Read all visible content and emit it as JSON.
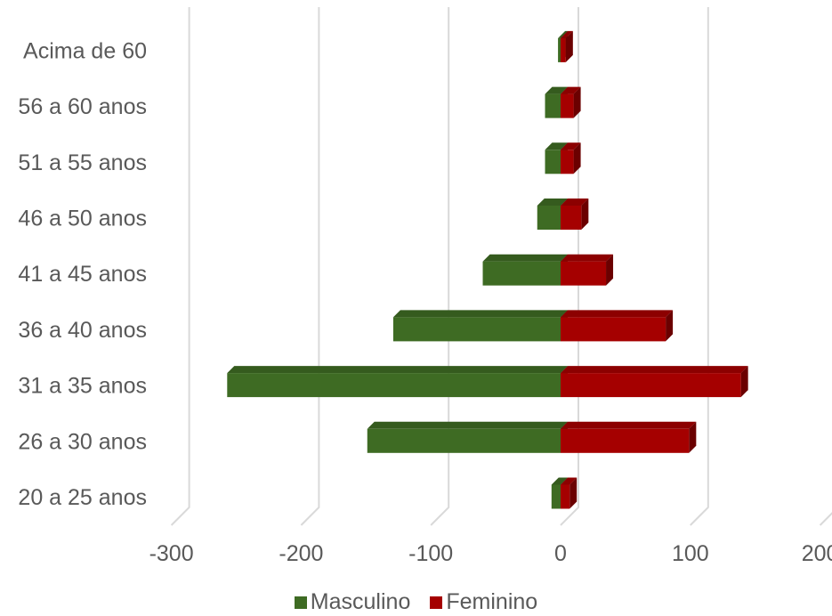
{
  "chart_data": {
    "type": "bar",
    "orientation": "horizontal",
    "stacked_diverging": true,
    "categories": [
      "20 a 25 anos",
      "26 a 30 anos",
      "31 a 35 anos",
      "36 a 40 anos",
      "41 a 45 anos",
      "46 a 50 anos",
      "51 a 55 anos",
      "56 a 60 anos",
      "Acima de 60"
    ],
    "series": [
      {
        "name": "Masculino",
        "color": "#3e6b23",
        "values": [
          -7,
          -149,
          -257,
          -129,
          -60,
          -18,
          -12,
          -12,
          -2
        ]
      },
      {
        "name": "Feminino",
        "color": "#a50000",
        "values": [
          7,
          99,
          139,
          81,
          35,
          16,
          10,
          10,
          4
        ]
      }
    ],
    "xlim": [
      -300,
      200
    ],
    "xticks": [
      "-300",
      "-200",
      "-100",
      "0",
      "100",
      "200"
    ],
    "grid": true,
    "legend_position": "bottom",
    "title": "",
    "xlabel": "",
    "ylabel": ""
  }
}
